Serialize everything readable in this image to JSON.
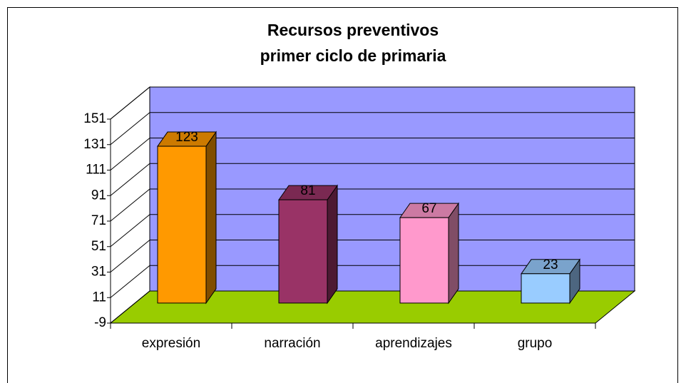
{
  "chart_data": {
    "type": "bar3d",
    "title": "Recursos preventivos",
    "subtitle": "primer ciclo de primaria",
    "categories": [
      "expresión",
      "narración",
      "aprendizajes",
      "grupo"
    ],
    "values": [
      123,
      81,
      67,
      23
    ],
    "colors": [
      "#ff9900",
      "#993366",
      "#ff99cc",
      "#99ccff"
    ],
    "ylim": [
      -9,
      151
    ],
    "yticks": [
      -9,
      11,
      31,
      51,
      71,
      91,
      111,
      131,
      151
    ],
    "grid": true,
    "wall_color": "#9999ff",
    "floor_color": "#99cc00"
  }
}
